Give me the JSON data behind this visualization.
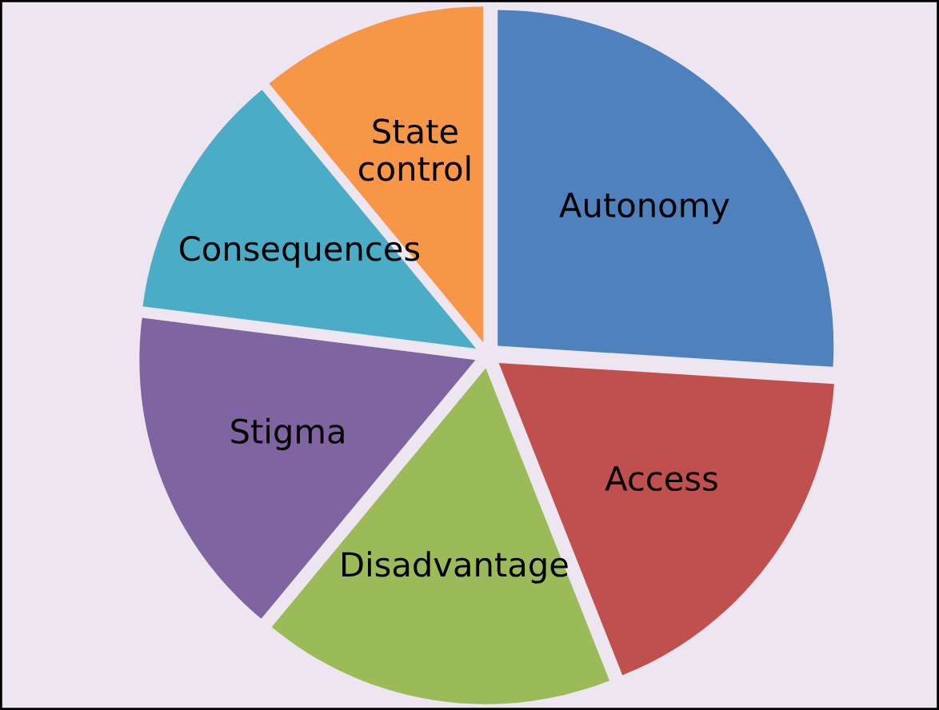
{
  "chart_data": {
    "type": "pie",
    "categories": [
      "Autonomy",
      "Access",
      "Disadvantage",
      "Stigma",
      "Consequences",
      "State\ncontrol"
    ],
    "values": [
      26,
      18,
      17,
      16,
      12,
      11
    ],
    "colors": [
      "#4f81bd",
      "#c0504d",
      "#9bbb59",
      "#8064a2",
      "#4bacc6",
      "#f79646"
    ]
  }
}
